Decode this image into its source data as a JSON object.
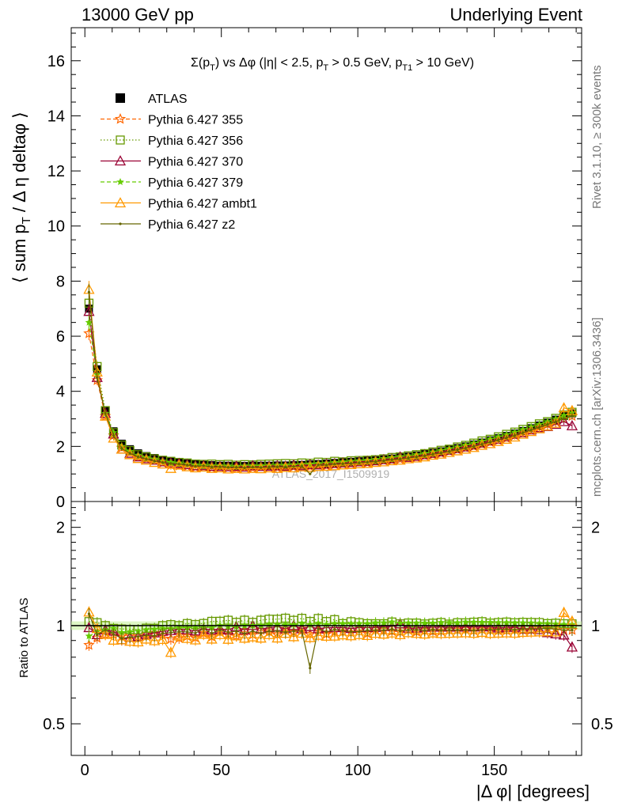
{
  "header": {
    "beam_label": "13000 GeV pp",
    "analysis_label": "Underlying Event"
  },
  "side_labels": {
    "rivet": "Rivet 3.1.10, ≥ 300k events",
    "mcplots": "mcplots.cern.ch [arXiv:1306.3436]"
  },
  "watermark": "ATLAS_2017_I1509919",
  "chart_data": [
    {
      "type": "scatter",
      "title": "Σ(p_T) vs Δφ (|η| < 2.5, p_T > 0.5 GeV, p_T1 > 10 GeV)",
      "title_parts": [
        "Σ(p",
        "T",
        ") vs Δφ (|η| < 2.5, p",
        "T",
        " > 0.5 GeV, p",
        "T1",
        " > 10 GeV)"
      ],
      "ylabel": "⟨ sum p_T / Δ η deltaφ ⟩",
      "xlabel": "|Δ φ| [degrees]",
      "xlim": [
        -5,
        182
      ],
      "ylim": [
        0,
        17.2
      ],
      "y_ticks": [
        "0",
        "2",
        "4",
        "6",
        "8",
        "10",
        "12",
        "14",
        "16"
      ],
      "x_ticks": [
        "0",
        "50",
        "100",
        "150"
      ],
      "legend_position": "top-left",
      "x": [
        1.5,
        4.5,
        7.5,
        10.5,
        13.5,
        16.5,
        19.5,
        22.5,
        25.5,
        28.5,
        31.5,
        34.5,
        37.5,
        40.5,
        43.5,
        46.5,
        49.5,
        52.5,
        55.5,
        58.5,
        61.5,
        64.5,
        67.5,
        70.5,
        73.5,
        76.5,
        79.5,
        82.5,
        85.5,
        88.5,
        91.5,
        94.5,
        97.5,
        100.5,
        103.5,
        106.5,
        109.5,
        112.5,
        115.5,
        118.5,
        121.5,
        124.5,
        127.5,
        130.5,
        133.5,
        136.5,
        139.5,
        142.5,
        145.5,
        148.5,
        151.5,
        154.5,
        157.5,
        160.5,
        163.5,
        166.5,
        169.5,
        172.5,
        175.5,
        178.5
      ],
      "series": [
        {
          "name": "ATLAS",
          "color": "#000000",
          "marker": "square-filled",
          "line": "none",
          "values": [
            7.0,
            4.8,
            3.3,
            2.55,
            2.1,
            1.9,
            1.75,
            1.65,
            1.58,
            1.5,
            1.45,
            1.42,
            1.38,
            1.35,
            1.33,
            1.32,
            1.3,
            1.3,
            1.29,
            1.29,
            1.3,
            1.3,
            1.3,
            1.31,
            1.31,
            1.32,
            1.33,
            1.35,
            1.36,
            1.38,
            1.4,
            1.42,
            1.44,
            1.46,
            1.48,
            1.5,
            1.53,
            1.56,
            1.6,
            1.63,
            1.67,
            1.72,
            1.77,
            1.82,
            1.88,
            1.94,
            2.0,
            2.07,
            2.14,
            2.22,
            2.3,
            2.38,
            2.47,
            2.56,
            2.66,
            2.76,
            2.86,
            2.97,
            3.1,
            3.2
          ]
        },
        {
          "name": "Pythia 6.427 355",
          "color": "#ff6600",
          "marker": "star-open",
          "line": "dashed",
          "values": [
            6.1,
            4.4,
            3.1,
            2.4,
            1.95,
            1.78,
            1.62,
            1.55,
            1.5,
            1.4,
            1.32,
            1.3,
            1.28,
            1.24,
            1.26,
            1.22,
            1.25,
            1.22,
            1.2,
            1.24,
            1.22,
            1.26,
            1.25,
            1.23,
            1.28,
            1.26,
            1.3,
            1.27,
            1.32,
            1.3,
            1.34,
            1.36,
            1.37,
            1.42,
            1.4,
            1.46,
            1.48,
            1.5,
            1.53,
            1.58,
            1.6,
            1.66,
            1.7,
            1.75,
            1.82,
            1.88,
            1.95,
            2.0,
            2.08,
            2.15,
            2.22,
            2.3,
            2.4,
            2.48,
            2.58,
            2.7,
            2.8,
            2.9,
            3.0,
            3.1
          ]
        },
        {
          "name": "Pythia 6.427 356",
          "color": "#669900",
          "marker": "square-open",
          "line": "dotted",
          "values": [
            7.2,
            4.9,
            3.3,
            2.5,
            2.05,
            1.85,
            1.7,
            1.62,
            1.55,
            1.5,
            1.46,
            1.42,
            1.4,
            1.36,
            1.35,
            1.36,
            1.34,
            1.35,
            1.32,
            1.34,
            1.33,
            1.35,
            1.36,
            1.37,
            1.38,
            1.37,
            1.4,
            1.39,
            1.43,
            1.42,
            1.46,
            1.44,
            1.48,
            1.49,
            1.5,
            1.52,
            1.55,
            1.6,
            1.62,
            1.66,
            1.7,
            1.74,
            1.8,
            1.86,
            1.9,
            1.98,
            2.04,
            2.12,
            2.2,
            2.26,
            2.35,
            2.44,
            2.52,
            2.62,
            2.72,
            2.82,
            2.9,
            3.02,
            3.14,
            3.24
          ]
        },
        {
          "name": "Pythia 6.427 370",
          "color": "#990033",
          "marker": "triangle-open",
          "line": "solid",
          "values": [
            6.9,
            4.5,
            3.2,
            2.45,
            1.9,
            1.75,
            1.62,
            1.55,
            1.5,
            1.44,
            1.4,
            1.38,
            1.34,
            1.3,
            1.3,
            1.28,
            1.27,
            1.26,
            1.28,
            1.25,
            1.3,
            1.27,
            1.28,
            1.3,
            1.28,
            1.32,
            1.3,
            1.34,
            1.33,
            1.36,
            1.38,
            1.4,
            1.41,
            1.44,
            1.46,
            1.48,
            1.52,
            1.55,
            1.62,
            1.6,
            1.64,
            1.7,
            1.75,
            1.8,
            1.86,
            1.92,
            1.98,
            2.05,
            2.12,
            2.2,
            2.26,
            2.35,
            2.44,
            2.5,
            2.6,
            2.68,
            2.72,
            2.8,
            2.9,
            2.75
          ]
        },
        {
          "name": "Pythia 6.427 379",
          "color": "#66cc00",
          "marker": "star-filled",
          "line": "dashed",
          "values": [
            6.5,
            4.6,
            3.2,
            2.5,
            2.0,
            1.82,
            1.68,
            1.6,
            1.54,
            1.47,
            1.42,
            1.4,
            1.36,
            1.33,
            1.32,
            1.3,
            1.3,
            1.29,
            1.28,
            1.29,
            1.3,
            1.3,
            1.31,
            1.32,
            1.32,
            1.33,
            1.35,
            1.36,
            1.38,
            1.39,
            1.42,
            1.44,
            1.46,
            1.48,
            1.5,
            1.53,
            1.56,
            1.6,
            1.63,
            1.66,
            1.7,
            1.75,
            1.8,
            1.86,
            1.92,
            1.98,
            2.05,
            2.12,
            2.19,
            2.27,
            2.35,
            2.43,
            2.52,
            2.61,
            2.71,
            2.8,
            2.9,
            3.0,
            3.12,
            3.22
          ]
        },
        {
          "name": "Pythia 6.427 ambt1",
          "color": "#ff9900",
          "marker": "triangle-open",
          "line": "solid",
          "values": [
            7.7,
            4.7,
            3.1,
            2.3,
            1.9,
            1.7,
            1.56,
            1.5,
            1.42,
            1.36,
            1.2,
            1.32,
            1.26,
            1.22,
            1.25,
            1.2,
            1.22,
            1.18,
            1.2,
            1.18,
            1.2,
            1.19,
            1.22,
            1.2,
            1.24,
            1.22,
            1.26,
            1.24,
            1.27,
            1.28,
            1.3,
            1.33,
            1.34,
            1.37,
            1.38,
            1.42,
            1.44,
            1.48,
            1.5,
            1.55,
            1.58,
            1.62,
            1.68,
            1.72,
            1.78,
            1.84,
            1.9,
            1.96,
            2.04,
            2.1,
            2.18,
            2.26,
            2.34,
            2.44,
            2.54,
            2.64,
            2.74,
            2.84,
            3.4,
            3.3
          ]
        },
        {
          "name": "Pythia 6.427 z2",
          "color": "#666600",
          "marker": "dot",
          "line": "solid",
          "values": [
            7.6,
            4.5,
            3.2,
            2.4,
            1.92,
            1.75,
            1.62,
            1.54,
            1.47,
            1.42,
            1.38,
            1.36,
            1.32,
            1.28,
            1.3,
            1.25,
            1.26,
            1.24,
            1.24,
            1.22,
            1.25,
            1.23,
            1.25,
            1.26,
            1.25,
            1.27,
            1.28,
            1.0,
            1.33,
            1.32,
            1.36,
            1.37,
            1.38,
            1.4,
            1.43,
            1.45,
            1.48,
            1.52,
            1.54,
            1.58,
            1.62,
            1.66,
            1.72,
            1.76,
            1.82,
            1.88,
            1.94,
            2.0,
            2.08,
            2.16,
            2.24,
            2.32,
            2.4,
            2.5,
            2.6,
            2.7,
            2.8,
            2.9,
            3.0,
            3.1
          ]
        }
      ]
    },
    {
      "type": "line",
      "ylabel": "Ratio to ATLAS",
      "xlabel": "|Δ φ| [degrees]",
      "yscale": "log",
      "ylim": [
        0.4,
        2.4
      ],
      "xlim": [
        -5,
        182
      ],
      "y_ticks": [
        "0.5",
        "1",
        "2"
      ],
      "x_ticks": [
        "0",
        "50",
        "100",
        "150"
      ],
      "reference_line": 1
    }
  ]
}
